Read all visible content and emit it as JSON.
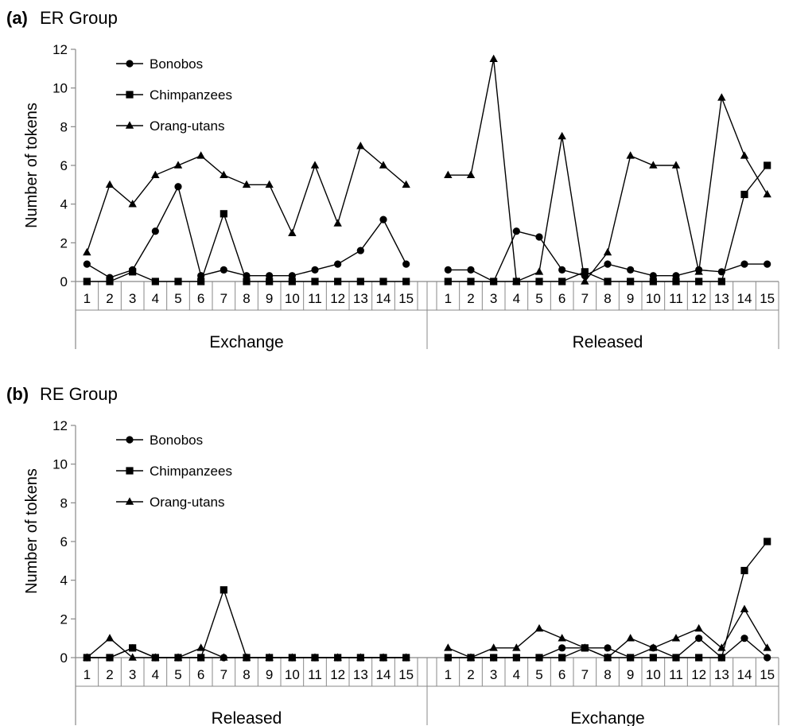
{
  "chart_data": [
    {
      "type": "line",
      "panel_letter": "(a)",
      "title": "ER Group",
      "ylabel": "Number of tokens",
      "ylim": [
        0,
        12
      ],
      "yticks": [
        0,
        2,
        4,
        6,
        8,
        10,
        12
      ],
      "grid": false,
      "legend_position": "top-left",
      "groups": [
        {
          "label": "Exchange",
          "categories": [
            "1",
            "2",
            "3",
            "4",
            "5",
            "6",
            "7",
            "8",
            "9",
            "10",
            "11",
            "12",
            "13",
            "14",
            "15"
          ]
        },
        {
          "label": "Released",
          "categories": [
            "1",
            "2",
            "3",
            "4",
            "5",
            "6",
            "7",
            "8",
            "9",
            "10",
            "11",
            "12",
            "13",
            "14",
            "15"
          ]
        }
      ],
      "series": [
        {
          "name": "Bonobos",
          "marker": "circle",
          "values": [
            [
              0.9,
              0.2,
              0.6,
              2.6,
              4.9,
              0.3,
              0.6,
              0.3,
              0.3,
              0.3,
              0.6,
              0.9,
              1.6,
              3.2,
              0.9
            ],
            [
              0.6,
              0.6,
              0.0,
              2.6,
              2.3,
              0.6,
              0.3,
              0.9,
              0.6,
              0.3,
              0.3,
              0.6,
              0.5,
              0.9,
              0.9
            ]
          ]
        },
        {
          "name": "Chimpanzees",
          "marker": "square",
          "values": [
            [
              0,
              0,
              0.5,
              0,
              0,
              0,
              3.5,
              0,
              0,
              0,
              0,
              0,
              0,
              0,
              0
            ],
            [
              0,
              0,
              0,
              0,
              0,
              0,
              0.5,
              0,
              0,
              0,
              0,
              0,
              0,
              4.5,
              6.0
            ]
          ]
        },
        {
          "name": "Orang-utans",
          "marker": "triangle",
          "values": [
            [
              1.5,
              5.0,
              4.0,
              5.5,
              6.0,
              6.5,
              5.5,
              5.0,
              5.0,
              2.5,
              6.0,
              3.0,
              7.0,
              6.0,
              5.0
            ],
            [
              5.5,
              5.5,
              11.5,
              0.0,
              0.5,
              7.5,
              0.0,
              1.5,
              6.5,
              6.0,
              6.0,
              0.5,
              9.5,
              6.5,
              4.5
            ]
          ]
        }
      ]
    },
    {
      "type": "line",
      "panel_letter": "(b)",
      "title": "RE Group",
      "ylabel": "Number of tokens",
      "ylim": [
        0,
        12
      ],
      "yticks": [
        0,
        2,
        4,
        6,
        8,
        10,
        12
      ],
      "grid": false,
      "legend_position": "top-left",
      "groups": [
        {
          "label": "Released",
          "categories": [
            "1",
            "2",
            "3",
            "4",
            "5",
            "6",
            "7",
            "8",
            "9",
            "10",
            "11",
            "12",
            "13",
            "14",
            "15"
          ]
        },
        {
          "label": "Exchange",
          "categories": [
            "1",
            "2",
            "3",
            "4",
            "5",
            "6",
            "7",
            "8",
            "9",
            "10",
            "11",
            "12",
            "13",
            "14",
            "15"
          ]
        }
      ],
      "series": [
        {
          "name": "Bonobos",
          "marker": "circle",
          "values": [
            [
              0,
              0,
              0.5,
              0,
              0,
              0,
              0,
              0,
              0,
              0,
              0,
              0,
              0,
              0,
              0
            ],
            [
              0,
              0,
              0,
              0,
              0,
              0.5,
              0.5,
              0.5,
              0,
              0.5,
              0,
              1.0,
              0,
              1.0,
              0
            ]
          ]
        },
        {
          "name": "Chimpanzees",
          "marker": "square",
          "values": [
            [
              0,
              0,
              0.5,
              0,
              0,
              0,
              3.5,
              0,
              0,
              0,
              0,
              0,
              0,
              0,
              0
            ],
            [
              0,
              0,
              0,
              0,
              0,
              0,
              0.5,
              0,
              0,
              0,
              0,
              0,
              0,
              4.5,
              6.0
            ]
          ]
        },
        {
          "name": "Orang-utans",
          "marker": "triangle",
          "values": [
            [
              0,
              1.0,
              0,
              0,
              0,
              0.5,
              0,
              0,
              0,
              0,
              0,
              0,
              0,
              0,
              0
            ],
            [
              0.5,
              0,
              0.5,
              0.5,
              1.5,
              1.0,
              0.5,
              0,
              1.0,
              0.5,
              1.0,
              1.5,
              0.5,
              2.5,
              0.5
            ]
          ]
        }
      ]
    }
  ]
}
